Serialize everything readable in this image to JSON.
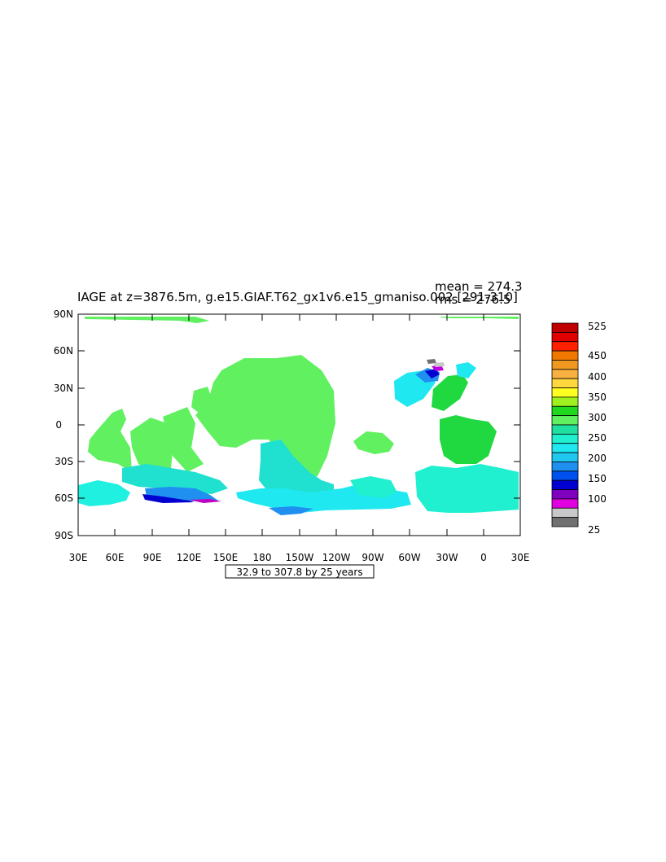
{
  "title": "IAGE at z=3876.5m, g.e15.GIAF.T62_gx1v6.e15_gmaniso.002 [291-310]",
  "stats": {
    "mean": "mean = 274.3",
    "rms": "rms = 276.5"
  },
  "contour_note": "32.9 to 307.8 by 25 years",
  "lat_labels": [
    "90N",
    "60N",
    "30N",
    "0",
    "30S",
    "60S",
    "90S"
  ],
  "lon_labels": [
    "30E",
    "60E",
    "90E",
    "120E",
    "150E",
    "180",
    "150W",
    "120W",
    "90W",
    "60W",
    "30W",
    "0",
    "30E"
  ],
  "colorbar": {
    "labels": [
      {
        "text": "525",
        "level": 525
      },
      {
        "text": "450",
        "level": 450
      },
      {
        "text": "400",
        "level": 400
      },
      {
        "text": "350",
        "level": 350
      },
      {
        "text": "300",
        "level": 300
      },
      {
        "text": "250",
        "level": 250
      },
      {
        "text": "200",
        "level": 200
      },
      {
        "text": "150",
        "level": 150
      },
      {
        "text": "100",
        "level": 100
      },
      {
        "text": "25",
        "level": 25
      }
    ],
    "colors": [
      "#c00000",
      "#e00000",
      "#ff2000",
      "#f07800",
      "#f09820",
      "#f8b040",
      "#ffd840",
      "#ffff20",
      "#a0f020",
      "#20d820",
      "#60f060",
      "#20e0a0",
      "#20f0d0",
      "#20e8f0",
      "#20c8f0",
      "#2090f0",
      "#0050f0",
      "#0000d0",
      "#8000c0",
      "#e000e0",
      "#c8c8c8",
      "#707070"
    ]
  },
  "chart_data": {
    "type": "heatmap",
    "variable": "IAGE",
    "units": "years",
    "depth": "z=3876.5m",
    "mean": 274.3,
    "rms": 276.5,
    "contour_min": 32.9,
    "contour_max": 307.8,
    "contour_interval": 25,
    "x_range_label": [
      "30E",
      "30E"
    ],
    "y_range_label": [
      "90S",
      "90N"
    ]
  }
}
